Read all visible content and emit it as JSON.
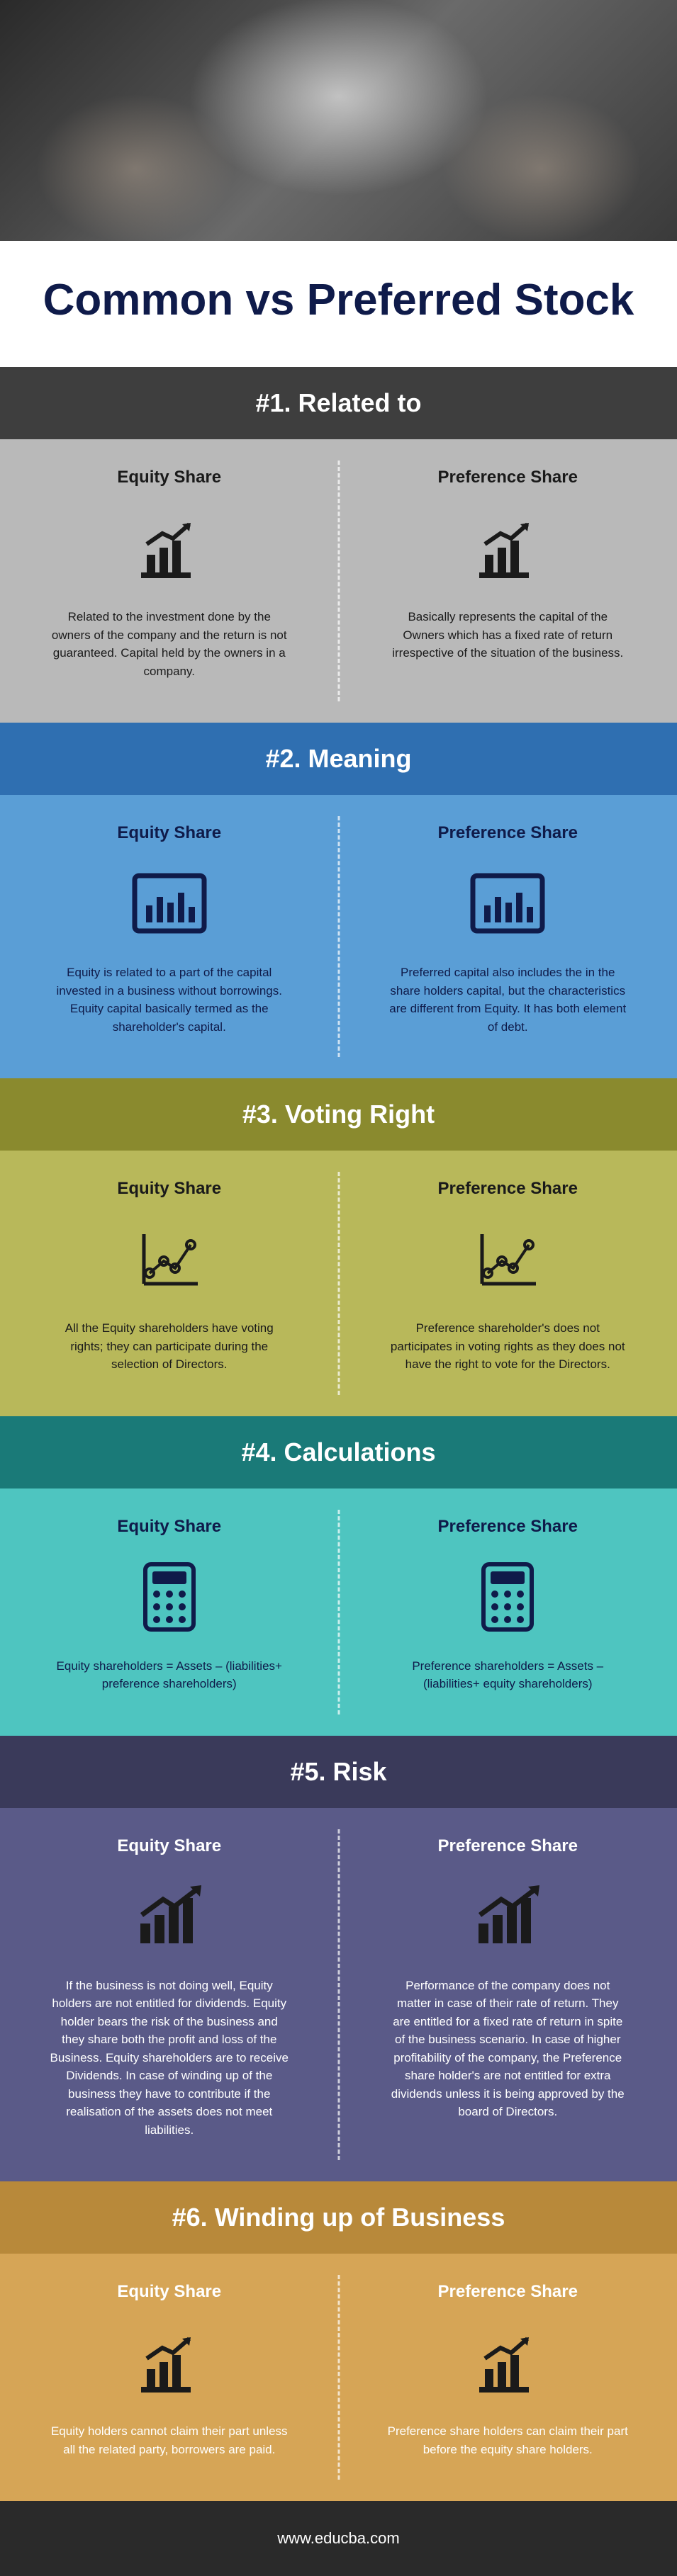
{
  "title": "Common vs Preferred Stock",
  "footer": "www.educba.com",
  "labels": {
    "equity": "Equity Share",
    "preference": "Preference Share"
  },
  "sections": [
    {
      "header": "#1. Related to",
      "header_bg": "#3e3e3e",
      "body_bg": "#b9b9b9",
      "title_color": "#1a1a1a",
      "text_color": "#1a1a1a",
      "divider": "light",
      "icon": "growth",
      "icon_color": "#1a1a1a",
      "equity_text": "Related to the investment done by the owners of the company and the return is not guaranteed. Capital held by the owners in a company.",
      "preference_text": "Basically represents the capital of the Owners which has a fixed rate of return irrespective of the situation of the business."
    },
    {
      "header": "#2. Meaning",
      "header_bg": "#2f6fb1",
      "body_bg": "#5a9ed6",
      "title_color": "#0f1b4a",
      "text_color": "#0f1b4a",
      "divider": "light",
      "icon": "bars-box",
      "icon_color": "#0f1b4a",
      "equity_text": "Equity is related to a part of the capital invested in a business without borrowings. Equity capital basically termed as the shareholder's capital.",
      "preference_text": "Preferred capital also includes the in the share holders capital, but the characteristics are different from Equity. It has both element of debt."
    },
    {
      "header": "#3. Voting Right",
      "header_bg": "#8a8a2e",
      "body_bg": "#b8b85a",
      "title_color": "#1a1a1a",
      "text_color": "#1a1a1a",
      "divider": "light",
      "icon": "line-chart",
      "icon_color": "#1a1a1a",
      "equity_text": "All the Equity shareholders have voting rights; they can participate during the selection of Directors.",
      "preference_text": "Preference shareholder's does not participates in voting rights as they does not have the right to vote for the Directors."
    },
    {
      "header": "#4. Calculations",
      "header_bg": "#1a7a78",
      "body_bg": "#4ec5c0",
      "title_color": "#0f1b4a",
      "text_color": "#0f1b4a",
      "divider": "light",
      "icon": "calculator",
      "icon_color": "#0f1b4a",
      "equity_text": "Equity shareholders = Assets – (liabilities+ preference shareholders)",
      "preference_text": "Preference shareholders = Assets – (liabilities+ equity shareholders)"
    },
    {
      "header": "#5. Risk",
      "header_bg": "#3a3a5a",
      "body_bg": "#5a5a88",
      "title_color": "#ffffff",
      "text_color": "#ffffff",
      "divider": "light",
      "icon": "growth-arrow",
      "icon_color": "#1a1a1a",
      "equity_text": "If the business is not doing well, Equity holders are not entitled for dividends. Equity holder bears the risk of the business and they share both the profit and loss of the Business. Equity shareholders are to receive Dividends. In case of winding up of the business they have to contribute if the realisation of the assets does not meet liabilities.",
      "preference_text": "Performance of the company does not matter in case of their rate of return. They are entitled for a fixed rate of return in spite of the business scenario. In case of higher profitability of the company, the Preference share holder's are not entitled for extra dividends unless it is being approved by the board of Directors."
    },
    {
      "header": "#6. Winding up of Business",
      "header_bg": "#b8893a",
      "body_bg": "#d6a556",
      "title_color": "#ffffff",
      "text_color": "#ffffff",
      "divider": "light",
      "icon": "growth",
      "icon_color": "#1a1a1a",
      "equity_text": "Equity holders cannot claim their part unless all the related party, borrowers are paid.",
      "preference_text": "Preference share holders can claim their part before the equity share holders."
    }
  ]
}
